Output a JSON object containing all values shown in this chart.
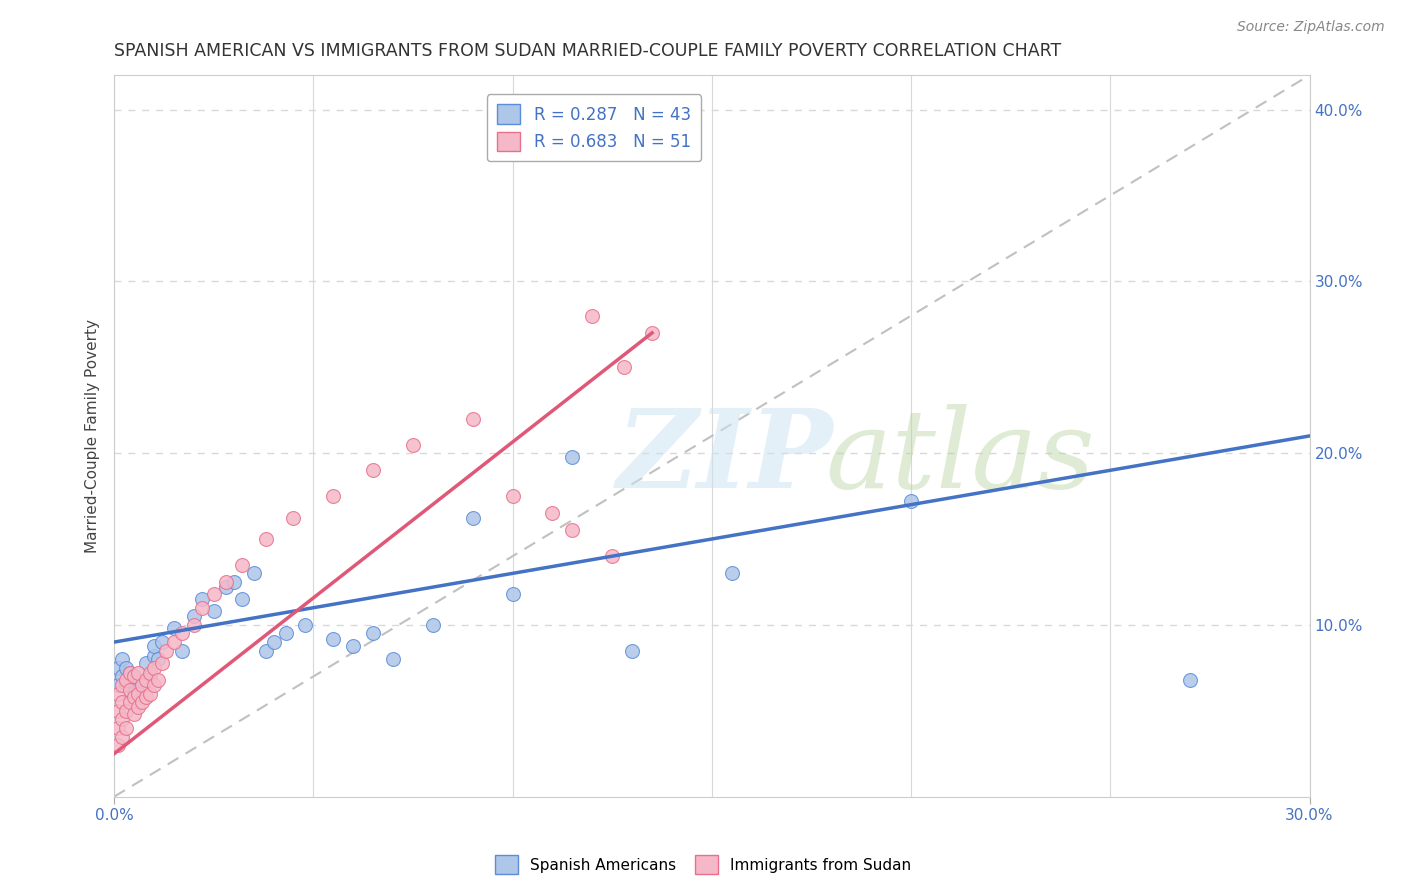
{
  "title": "SPANISH AMERICAN VS IMMIGRANTS FROM SUDAN MARRIED-COUPLE FAMILY POVERTY CORRELATION CHART",
  "source": "Source: ZipAtlas.com",
  "ylabel": "Married-Couple Family Poverty",
  "legend_label_blue": "Spanish Americans",
  "legend_label_pink": "Immigrants from Sudan",
  "legend_r_blue": "R = 0.287",
  "legend_n_blue": "N = 43",
  "legend_r_pink": "R = 0.683",
  "legend_n_pink": "N = 51",
  "color_blue_fill": "#aec6e8",
  "color_blue_edge": "#5b8dd9",
  "color_pink_fill": "#f5b8c8",
  "color_pink_edge": "#e8708a",
  "color_line_blue": "#4472c4",
  "color_line_pink": "#e05878",
  "color_dashed": "#c0c0c0",
  "color_grid": "#d8d8d8",
  "xmin": 0.0,
  "xmax": 0.3,
  "ymin": 0.0,
  "ymax": 0.42,
  "background_color": "#ffffff",
  "blue_x": [
    0.001,
    0.001,
    0.002,
    0.002,
    0.003,
    0.003,
    0.004,
    0.004,
    0.005,
    0.005,
    0.006,
    0.007,
    0.008,
    0.009,
    0.01,
    0.01,
    0.011,
    0.012,
    0.015,
    0.017,
    0.02,
    0.022,
    0.025,
    0.028,
    0.03,
    0.032,
    0.035,
    0.038,
    0.04,
    0.043,
    0.048,
    0.055,
    0.06,
    0.065,
    0.07,
    0.08,
    0.09,
    0.1,
    0.115,
    0.13,
    0.155,
    0.2,
    0.27
  ],
  "blue_y": [
    0.065,
    0.075,
    0.07,
    0.08,
    0.065,
    0.075,
    0.068,
    0.072,
    0.06,
    0.07,
    0.068,
    0.065,
    0.078,
    0.07,
    0.082,
    0.088,
    0.08,
    0.09,
    0.098,
    0.085,
    0.105,
    0.115,
    0.108,
    0.122,
    0.125,
    0.115,
    0.13,
    0.085,
    0.09,
    0.095,
    0.1,
    0.092,
    0.088,
    0.095,
    0.08,
    0.1,
    0.162,
    0.118,
    0.198,
    0.085,
    0.13,
    0.172,
    0.068
  ],
  "pink_x": [
    0.001,
    0.001,
    0.001,
    0.001,
    0.002,
    0.002,
    0.002,
    0.002,
    0.003,
    0.003,
    0.003,
    0.004,
    0.004,
    0.004,
    0.005,
    0.005,
    0.005,
    0.006,
    0.006,
    0.006,
    0.007,
    0.007,
    0.008,
    0.008,
    0.009,
    0.009,
    0.01,
    0.01,
    0.011,
    0.012,
    0.013,
    0.015,
    0.017,
    0.02,
    0.022,
    0.025,
    0.028,
    0.032,
    0.038,
    0.045,
    0.055,
    0.065,
    0.075,
    0.09,
    0.1,
    0.11,
    0.115,
    0.12,
    0.125,
    0.128,
    0.135
  ],
  "pink_y": [
    0.03,
    0.04,
    0.05,
    0.06,
    0.035,
    0.045,
    0.055,
    0.065,
    0.04,
    0.05,
    0.068,
    0.055,
    0.062,
    0.072,
    0.048,
    0.058,
    0.07,
    0.052,
    0.06,
    0.072,
    0.055,
    0.065,
    0.058,
    0.068,
    0.06,
    0.072,
    0.065,
    0.075,
    0.068,
    0.078,
    0.085,
    0.09,
    0.095,
    0.1,
    0.11,
    0.118,
    0.125,
    0.135,
    0.15,
    0.162,
    0.175,
    0.19,
    0.205,
    0.22,
    0.175,
    0.165,
    0.155,
    0.28,
    0.14,
    0.25,
    0.27
  ],
  "blue_line_x0": 0.0,
  "blue_line_x1": 0.3,
  "blue_line_y0": 0.09,
  "blue_line_y1": 0.21,
  "pink_line_x0": 0.0,
  "pink_line_x1": 0.135,
  "pink_line_y0": 0.025,
  "pink_line_y1": 0.27
}
